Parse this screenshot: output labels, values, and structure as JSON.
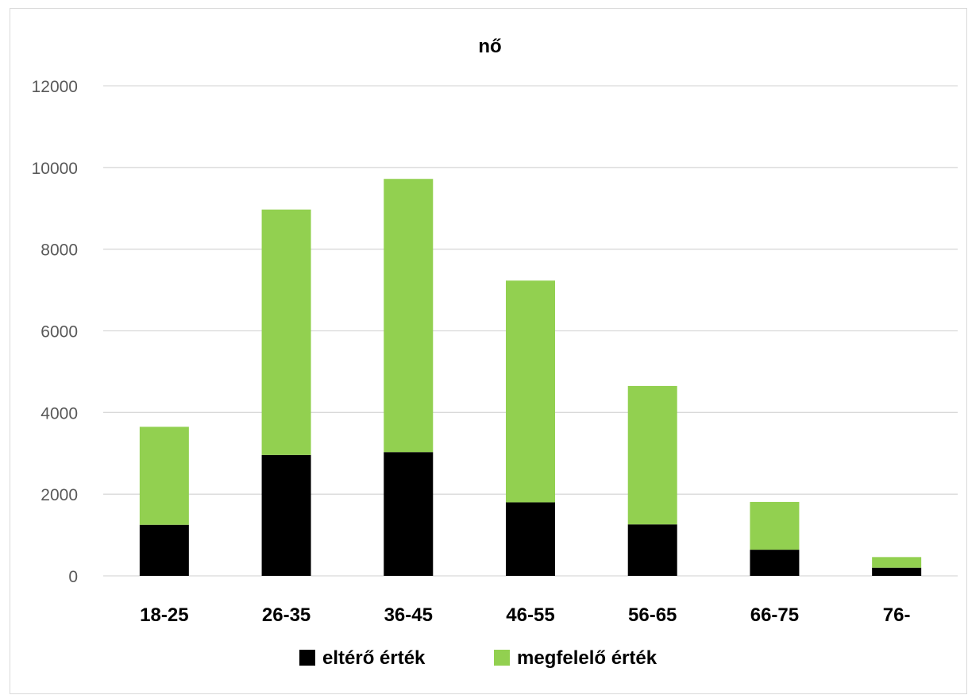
{
  "chart_data": {
    "type": "bar",
    "stacked": true,
    "title": "nő",
    "categories": [
      "18-25",
      "26-35",
      "36-45",
      "46-55",
      "56-65",
      "66-75",
      "76-"
    ],
    "series": [
      {
        "name": "eltérő érték",
        "color": "#000000",
        "values": [
          1250,
          2960,
          3030,
          1800,
          1260,
          640,
          200
        ]
      },
      {
        "name": "megfelelő érték",
        "color": "#92d050",
        "values": [
          2400,
          6010,
          6690,
          5430,
          3390,
          1170,
          260
        ]
      }
    ],
    "ylim": [
      0,
      12000
    ],
    "yticks": [
      0,
      2000,
      4000,
      6000,
      8000,
      10000,
      12000
    ],
    "xlabel": "",
    "ylabel": "",
    "grid": true,
    "legend_position": "bottom"
  }
}
